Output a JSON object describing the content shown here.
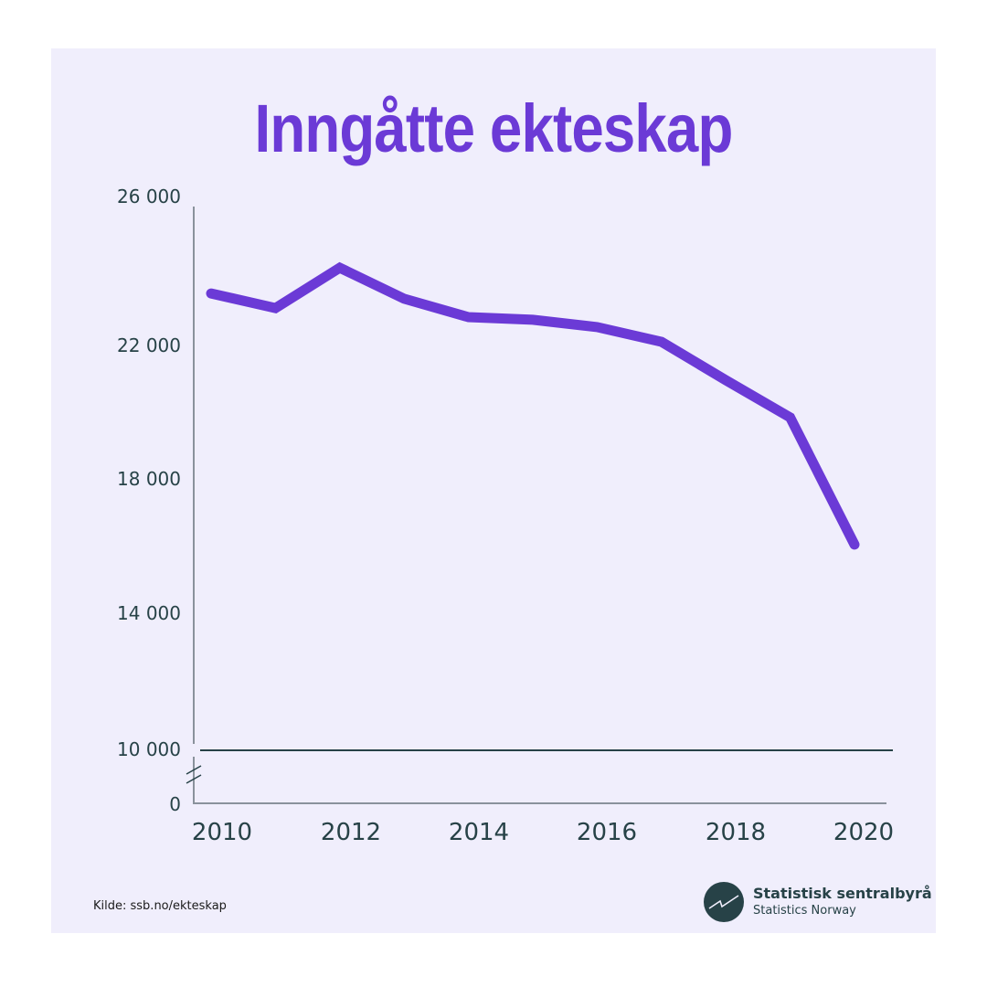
{
  "title": "Inngåtte ekteskap",
  "source": "Kilde: ssb.no/ekteskap",
  "logo": {
    "icon": "ssb-logo-icon",
    "name": "Statistisk sentralbyrå",
    "subtitle": "Statistics Norway"
  },
  "colors": {
    "background": "#f0eefc",
    "line": "#6b3ad6",
    "axis": "#8a929c",
    "text": "#274247"
  },
  "axis": {
    "y_ticks": [
      "26 000",
      "22 000",
      "18 000",
      "14 000",
      "10 000",
      "0"
    ],
    "x_ticks": [
      "2010",
      "2012",
      "2014",
      "2016",
      "2018",
      "2020"
    ]
  },
  "chart_data": {
    "type": "line",
    "title": "Inngåtte ekteskap",
    "xlabel": "",
    "ylabel": "",
    "x": [
      2010,
      2011,
      2012,
      2013,
      2014,
      2015,
      2016,
      2017,
      2018,
      2019,
      2020
    ],
    "series": [
      {
        "name": "Inngåtte ekteskap",
        "values": [
          23560,
          23120,
          24330,
          23400,
          22850,
          22770,
          22550,
          22110,
          20960,
          19840,
          16030
        ]
      }
    ],
    "ylim": [
      0,
      26000
    ],
    "y_axis_break": [
      0,
      10000
    ],
    "y_ticks": [
      0,
      10000,
      14000,
      18000,
      22000,
      26000
    ],
    "x_ticks": [
      2010,
      2012,
      2014,
      2016,
      2018,
      2020
    ],
    "grid": false,
    "legend": "none",
    "source": "Kilde: ssb.no/ekteskap"
  }
}
